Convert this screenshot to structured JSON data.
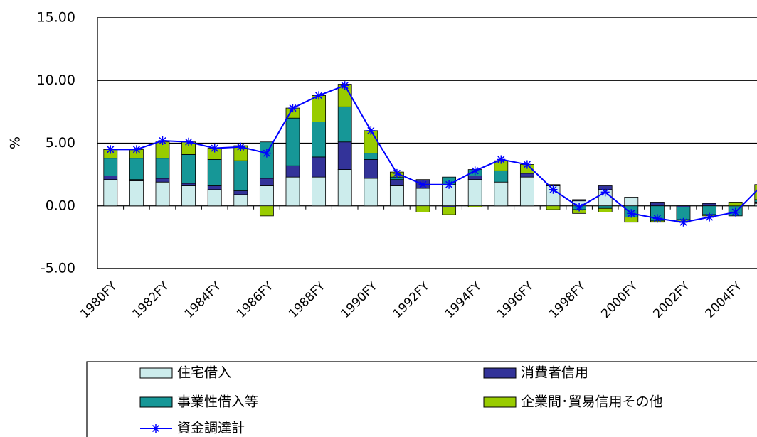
{
  "chart_data": {
    "type": "bar",
    "y_label": "%",
    "categories": [
      "1980FY",
      null,
      "1982FY",
      null,
      "1984FY",
      null,
      "1986FY",
      null,
      "1988FY",
      null,
      "1990FY",
      null,
      "1992FY",
      null,
      "1994FY",
      null,
      "1996FY",
      null,
      "1998FY",
      null,
      "2000FY",
      null,
      "2002FY",
      null,
      "2004FY",
      null
    ],
    "series": [
      {
        "name": "住宅借入",
        "color": "#ccecec",
        "values": [
          2.1,
          2.0,
          1.9,
          1.6,
          1.3,
          0.9,
          1.6,
          2.3,
          2.3,
          2.9,
          2.2,
          1.6,
          1.4,
          1.7,
          2.1,
          1.9,
          2.3,
          1.6,
          0.4,
          1.3,
          0.7,
          0.0,
          0.0,
          0.0,
          0.0,
          0.2
        ]
      },
      {
        "name": "消費者信用",
        "color": "#333399",
        "values": [
          0.3,
          0.1,
          0.3,
          0.2,
          0.3,
          0.3,
          0.6,
          0.9,
          1.6,
          2.2,
          1.5,
          0.5,
          0.7,
          -0.1,
          0.3,
          0.0,
          0.3,
          0.1,
          0.1,
          0.3,
          0.0,
          0.3,
          -0.1,
          0.2,
          0.0,
          0.1
        ]
      },
      {
        "name": "事業性借入等",
        "color": "#169797",
        "values": [
          1.4,
          1.7,
          1.6,
          2.3,
          2.1,
          2.4,
          2.9,
          3.8,
          2.8,
          2.8,
          0.5,
          0.2,
          0.0,
          0.6,
          0.5,
          0.9,
          0.0,
          0.0,
          -0.3,
          -0.2,
          -0.9,
          -1.2,
          -1.0,
          -0.7,
          -0.8,
          0.2
        ]
      },
      {
        "name": "企業間･貿易信用その他",
        "color": "#99cc00",
        "values": [
          0.7,
          0.7,
          1.3,
          1.0,
          0.9,
          1.2,
          -0.8,
          0.8,
          2.1,
          1.8,
          1.8,
          0.4,
          -0.5,
          -0.6,
          -0.1,
          0.8,
          0.7,
          -0.3,
          -0.3,
          -0.3,
          -0.4,
          -0.1,
          -0.2,
          -0.1,
          0.3,
          1.2
        ]
      },
      {
        "name": "資金調達計",
        "type": "line",
        "color": "#0000ff",
        "values": [
          4.5,
          4.5,
          5.2,
          5.1,
          4.6,
          4.7,
          4.2,
          7.8,
          8.8,
          9.6,
          6.0,
          2.6,
          1.7,
          1.7,
          2.8,
          3.7,
          3.3,
          1.3,
          -0.1,
          1.1,
          -0.6,
          -1.0,
          -1.3,
          -0.9,
          -0.5,
          1.6
        ]
      }
    ],
    "ylim": [
      -5,
      15
    ],
    "yticks": [
      {
        "value": -5,
        "label": "-5.00"
      },
      {
        "value": 0,
        "label": "0.00"
      },
      {
        "value": 5,
        "label": "5.00"
      },
      {
        "value": 10,
        "label": "10.00"
      },
      {
        "value": 15,
        "label": "15.00"
      }
    ],
    "grid": true
  }
}
